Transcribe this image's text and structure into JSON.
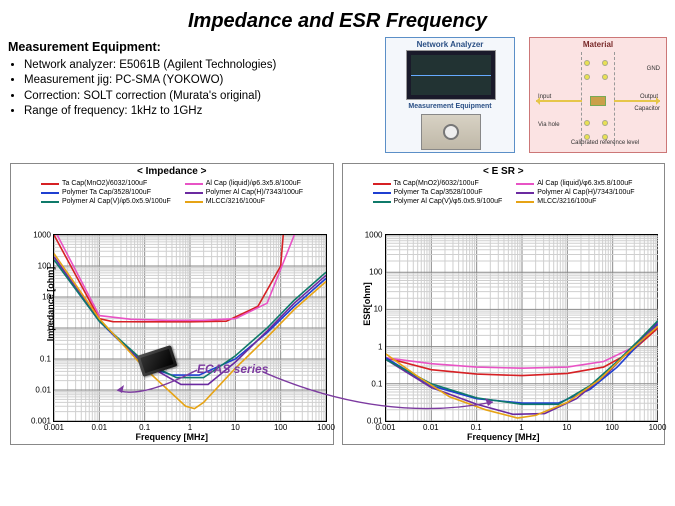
{
  "title": "Impedance and ESR Frequency",
  "equipment": {
    "heading": "Measurement Equipment:",
    "items": [
      "Network analyzer: E5061B (Agilent Technologies)",
      "Measurement jig: PC-SMA (YOKOWO)",
      "Correction: SOLT correction (Murata's original)",
      "Range of frequency: 1kHz to 1GHz"
    ]
  },
  "diagram": {
    "analyzer_label": "Network Analyzer",
    "meas_label": "Measurement Equipment",
    "material_label": "Material",
    "labels": {
      "input": "Input",
      "output": "Output",
      "gnd": "GND",
      "capacitor": "Capacitor",
      "via": "Via hole",
      "cal": "Calibrated reference level"
    }
  },
  "series_meta": [
    {
      "label": "Ta Cap(MnO2)/6032/100uF",
      "color": "#d62024"
    },
    {
      "label": "Al Cap (liquid)/φ6.3x5.8/100uF",
      "color": "#e853c5"
    },
    {
      "label": "Polymer Ta Cap/3528/100uF",
      "color": "#1f3fd1"
    },
    {
      "label": "Polymer Al Cap(H)/7343/100uF",
      "color": "#6b2aa0"
    },
    {
      "label": "Polymer Al Cap(V)/φ5.0x5.9/100uF",
      "color": "#0f7a6a"
    },
    {
      "label": "MLCC/3216/100uF",
      "color": "#e6a315"
    }
  ],
  "impedance_chart": {
    "title": "< Impedance >",
    "xlabel": "Frequency [MHz]",
    "ylabel": "Impedance [ohm]",
    "xmin_log": -3,
    "xmax_log": 3,
    "ymin_log": -3,
    "ymax_log": 3,
    "xticks": [
      "0.001",
      "0.01",
      "0.1",
      "1",
      "10",
      "100",
      "1000"
    ],
    "yticks": [
      "0.001",
      "0.01",
      "0.1",
      "1",
      "10",
      "100",
      "1000"
    ],
    "series": {
      "ta_mno2": [
        [
          -3,
          3.0
        ],
        [
          -2,
          0.3
        ],
        [
          -1.7,
          0.204
        ],
        [
          -1,
          0.2
        ],
        [
          0,
          0.2
        ],
        [
          0.8,
          0.22
        ],
        [
          1.5,
          0.7
        ],
        [
          2,
          2.0
        ],
        [
          3,
          20
        ]
      ],
      "al_liquid": [
        [
          -3,
          3.2
        ],
        [
          -2,
          0.4
        ],
        [
          -1.3,
          0.28
        ],
        [
          -0.5,
          0.25
        ],
        [
          0.3,
          0.25
        ],
        [
          1,
          0.3
        ],
        [
          1.7,
          0.8
        ],
        [
          2.3,
          3
        ],
        [
          3,
          25
        ]
      ],
      "poly_ta": [
        [
          -3,
          2.2
        ],
        [
          -2,
          0.22
        ],
        [
          -1,
          -1.22
        ],
        [
          -0.4,
          -1.52
        ],
        [
          0.2,
          -1.52
        ],
        [
          1,
          -1.0
        ],
        [
          1.7,
          -0.15
        ],
        [
          2.3,
          0.7
        ],
        [
          3,
          1.6
        ]
      ],
      "poly_al_h": [
        [
          -3,
          2.3
        ],
        [
          -2,
          0.23
        ],
        [
          -1,
          -1.15
        ],
        [
          -0.2,
          -1.82
        ],
        [
          0.4,
          -1.82
        ],
        [
          1,
          -1.1
        ],
        [
          1.7,
          -0.1
        ],
        [
          2.3,
          0.8
        ],
        [
          3,
          1.7
        ]
      ],
      "poly_al_v": [
        [
          -3,
          2.2
        ],
        [
          -2,
          0.22
        ],
        [
          -1,
          -1.1
        ],
        [
          -0.3,
          -1.6
        ],
        [
          0.3,
          -1.6
        ],
        [
          1,
          -0.9
        ],
        [
          1.7,
          0.0
        ],
        [
          2.3,
          0.9
        ],
        [
          3,
          1.8
        ]
      ],
      "mlcc": [
        [
          -3,
          2.4
        ],
        [
          -2,
          0.3
        ],
        [
          -1,
          -1.3
        ],
        [
          -0.1,
          -2.52
        ],
        [
          0.1,
          -2.6
        ],
        [
          0.3,
          -2.4
        ],
        [
          1,
          -1.3
        ],
        [
          1.7,
          -0.3
        ],
        [
          2.3,
          0.6
        ],
        [
          3,
          1.5
        ]
      ]
    }
  },
  "esr_chart": {
    "title": "< E SR >",
    "xlabel": "Frequency [MHz]",
    "ylabel": "ESR[ohm]",
    "xmin_log": -3,
    "xmax_log": 3,
    "ymin_log": -2,
    "ymax_log": 3,
    "xticks": [
      "0.001",
      "0.01",
      "0.1",
      "1",
      "10",
      "100",
      "1000"
    ],
    "yticks": [
      "0.01",
      "0.1",
      "1",
      "10",
      "100",
      "1000"
    ],
    "series": {
      "ta_mno2": [
        [
          -3,
          -0.3
        ],
        [
          -2,
          -0.62
        ],
        [
          -1,
          -0.74
        ],
        [
          0,
          -0.78
        ],
        [
          1,
          -0.72
        ],
        [
          1.8,
          -0.55
        ],
        [
          2.4,
          -0.15
        ],
        [
          3,
          0.5
        ]
      ],
      "al_liquid": [
        [
          -3,
          -0.3
        ],
        [
          -2,
          -0.46
        ],
        [
          -1,
          -0.55
        ],
        [
          0,
          -0.58
        ],
        [
          1,
          -0.55
        ],
        [
          1.8,
          -0.4
        ],
        [
          2.4,
          -0.05
        ],
        [
          3,
          0.55
        ]
      ],
      "poly_ta": [
        [
          -3,
          -0.3
        ],
        [
          -2,
          -1.05
        ],
        [
          -1,
          -1.4
        ],
        [
          0,
          -1.52
        ],
        [
          0.8,
          -1.52
        ],
        [
          1.5,
          -1.15
        ],
        [
          2.1,
          -0.55
        ],
        [
          2.6,
          0.1
        ],
        [
          3,
          0.6
        ]
      ],
      "poly_al_h": [
        [
          -3,
          -0.35
        ],
        [
          -2,
          -1.1
        ],
        [
          -1,
          -1.55
        ],
        [
          -0.2,
          -1.82
        ],
        [
          0.5,
          -1.8
        ],
        [
          1.2,
          -1.4
        ],
        [
          1.9,
          -0.7
        ],
        [
          2.5,
          0.05
        ],
        [
          3,
          0.65
        ]
      ],
      "poly_al_v": [
        [
          -3,
          -0.35
        ],
        [
          -2,
          -1.0
        ],
        [
          -1,
          -1.38
        ],
        [
          0,
          -1.55
        ],
        [
          0.8,
          -1.55
        ],
        [
          1.5,
          -1.05
        ],
        [
          2.1,
          -0.4
        ],
        [
          2.6,
          0.2
        ],
        [
          3,
          0.7
        ]
      ],
      "mlcc": [
        [
          -3,
          -0.2
        ],
        [
          -2.3,
          -0.8
        ],
        [
          -1.6,
          -1.35
        ],
        [
          -0.8,
          -1.7
        ],
        [
          -0.1,
          -1.92
        ],
        [
          0.3,
          -1.85
        ],
        [
          1.0,
          -1.5
        ],
        [
          1.7,
          -0.9
        ],
        [
          2.3,
          -0.2
        ],
        [
          3,
          0.55
        ]
      ]
    }
  },
  "annotation": {
    "text": "ECAS series",
    "color": "#7c3aa0"
  }
}
